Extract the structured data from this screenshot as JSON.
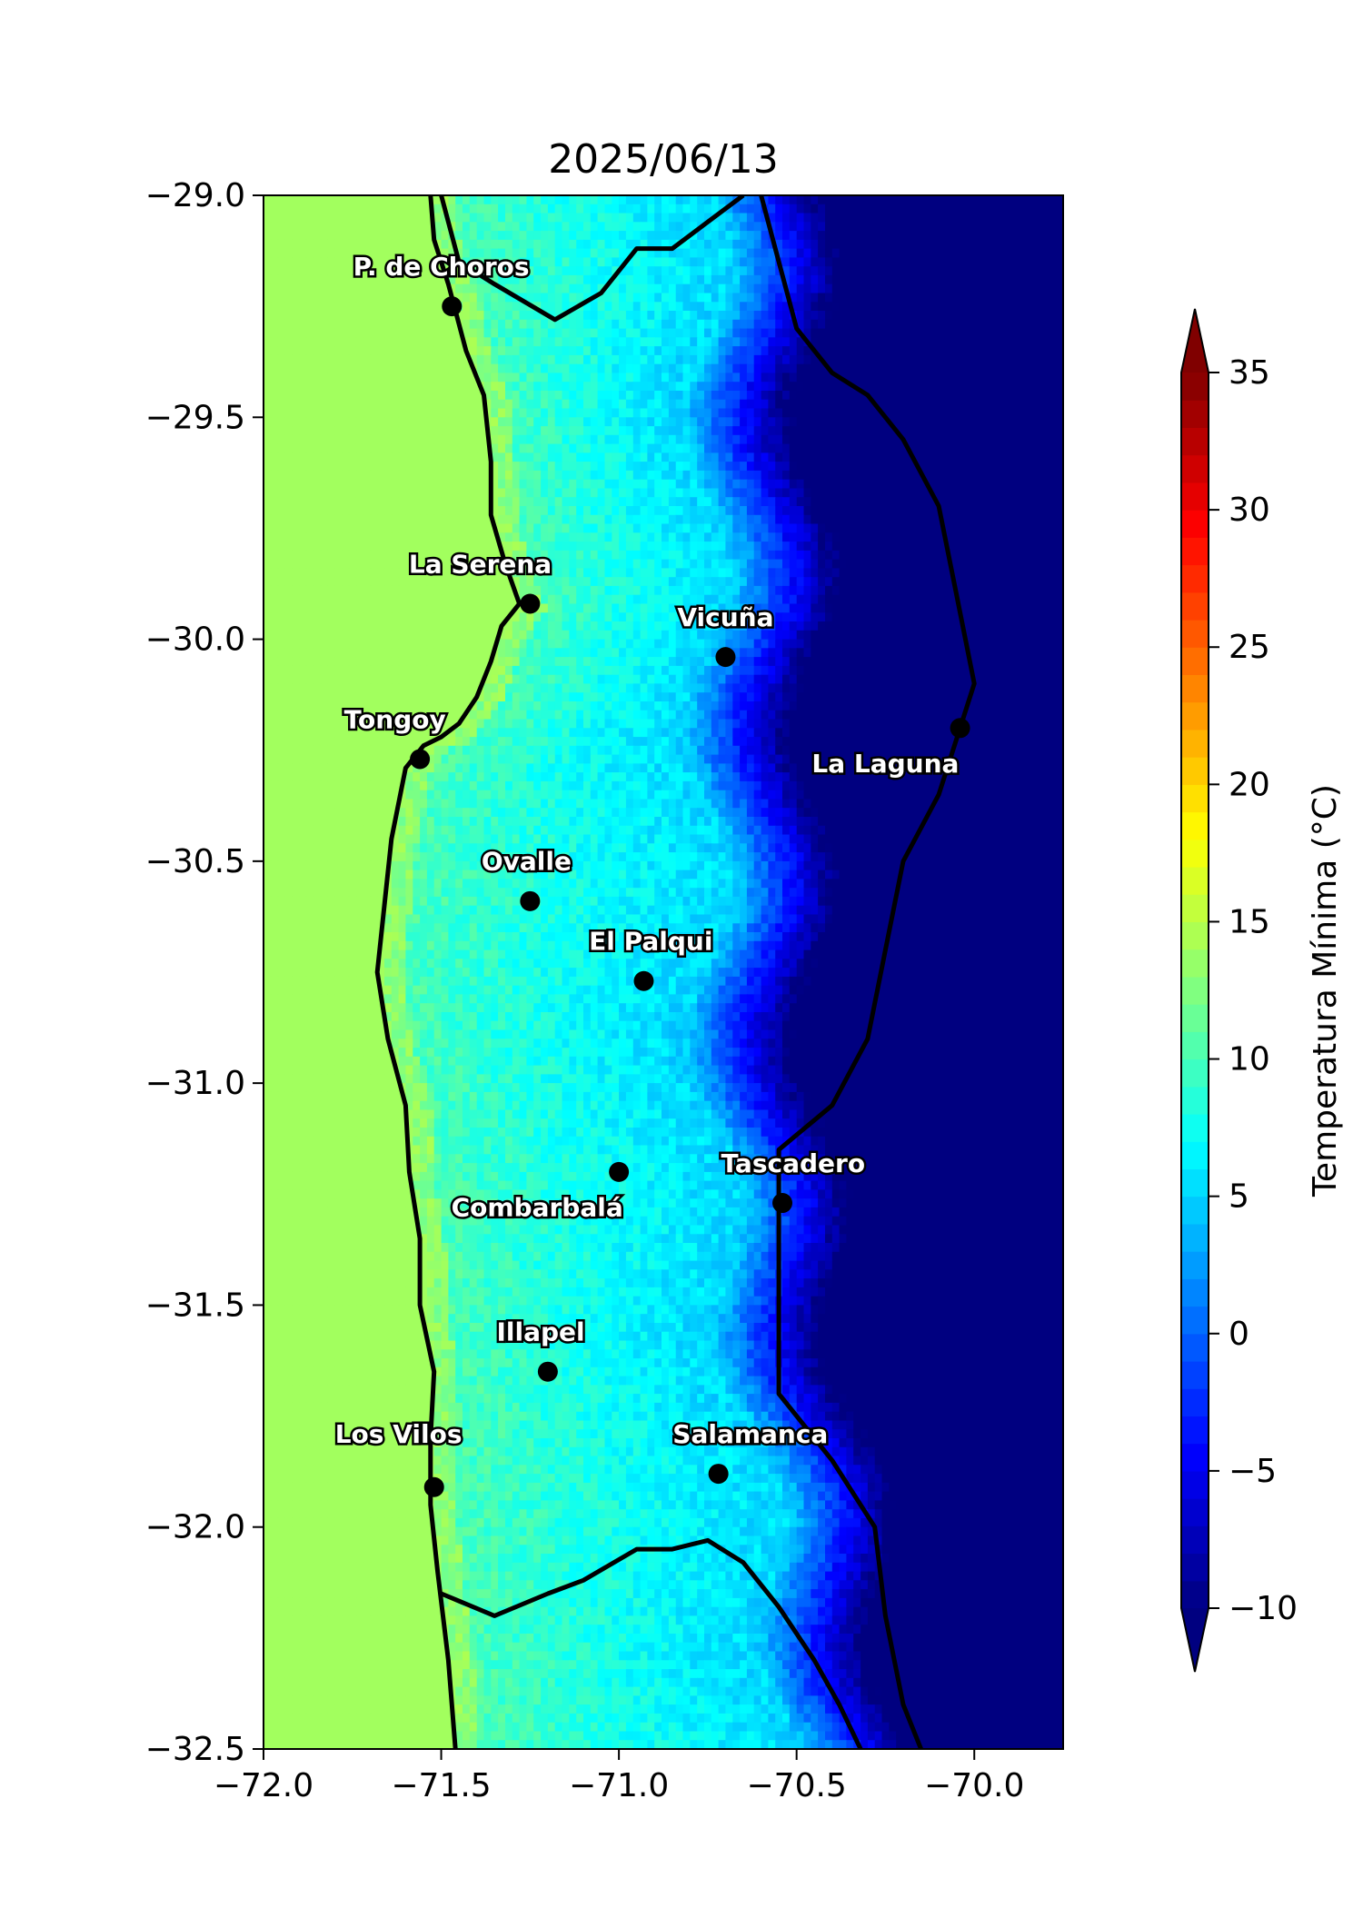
{
  "chart_data": {
    "type": "heatmap",
    "title": "2025/06/13",
    "xlabel": "",
    "ylabel": "",
    "xlim": [
      -72.0,
      -69.75
    ],
    "ylim": [
      -32.5,
      -29.0
    ],
    "x_ticks": [
      -72.0,
      -71.5,
      -71.0,
      -70.5,
      -70.0
    ],
    "x_tick_labels": [
      "−72.0",
      "−71.5",
      "−71.0",
      "−70.5",
      "−70.0"
    ],
    "y_ticks": [
      -29.0,
      -29.5,
      -30.0,
      -30.5,
      -31.0,
      -31.5,
      -32.0,
      -32.5
    ],
    "y_tick_labels": [
      "−29.0",
      "−29.5",
      "−30.0",
      "−30.5",
      "−31.0",
      "−31.5",
      "−32.0",
      "−32.5"
    ],
    "colorbar": {
      "label": "Temperatura Mínima (°C)",
      "min": -10,
      "max": 35,
      "ticks": [
        -10,
        -5,
        0,
        5,
        10,
        15,
        20,
        25,
        30,
        35
      ],
      "tick_labels": [
        "−10",
        "−5",
        "0",
        "5",
        "10",
        "15",
        "20",
        "25",
        "30",
        "35"
      ],
      "extend": "both",
      "colormap": "jet"
    },
    "ocean_value_c": 14,
    "stations": [
      {
        "name": "P. de Choros",
        "lon": -71.47,
        "lat": -29.25,
        "label_dx": -0.03,
        "label_dy": 0.07
      },
      {
        "name": "La Serena",
        "lon": -71.25,
        "lat": -29.92,
        "label_dx": -0.14,
        "label_dy": 0.07
      },
      {
        "name": "Vicuña",
        "lon": -70.7,
        "lat": -30.04,
        "label_dx": 0.0,
        "label_dy": 0.07
      },
      {
        "name": "La Laguna",
        "lon": -70.04,
        "lat": -30.2,
        "label_dx": -0.21,
        "label_dy": -0.1
      },
      {
        "name": "Tongoy",
        "lon": -71.56,
        "lat": -30.27,
        "label_dx": -0.07,
        "label_dy": 0.07
      },
      {
        "name": "Ovalle",
        "lon": -71.25,
        "lat": -30.59,
        "label_dx": -0.01,
        "label_dy": 0.07
      },
      {
        "name": "El Palqui",
        "lon": -70.93,
        "lat": -30.77,
        "label_dx": 0.02,
        "label_dy": 0.07
      },
      {
        "name": "Combarbalá",
        "lon": -71.0,
        "lat": -31.2,
        "label_dx": -0.23,
        "label_dy": -0.1
      },
      {
        "name": "Tascadero",
        "lon": -70.54,
        "lat": -31.27,
        "label_dx": 0.03,
        "label_dy": 0.07
      },
      {
        "name": "Illapel",
        "lon": -71.2,
        "lat": -31.65,
        "label_dx": -0.02,
        "label_dy": 0.07
      },
      {
        "name": "Los Vilos",
        "lon": -71.52,
        "lat": -31.91,
        "label_dx": -0.1,
        "label_dy": 0.1
      },
      {
        "name": "Salamanca",
        "lon": -70.72,
        "lat": -31.88,
        "label_dx": 0.09,
        "label_dy": 0.07
      }
    ],
    "coastline": [
      [
        -71.53,
        -29.0
      ],
      [
        -71.52,
        -29.1
      ],
      [
        -71.48,
        -29.2
      ],
      [
        -71.46,
        -29.26
      ],
      [
        -71.43,
        -29.35
      ],
      [
        -71.38,
        -29.45
      ],
      [
        -71.36,
        -29.6
      ],
      [
        -71.36,
        -29.72
      ],
      [
        -71.32,
        -29.83
      ],
      [
        -71.28,
        -29.92
      ],
      [
        -71.33,
        -29.97
      ],
      [
        -71.36,
        -30.05
      ],
      [
        -71.4,
        -30.13
      ],
      [
        -71.45,
        -30.19
      ],
      [
        -71.5,
        -30.22
      ],
      [
        -71.55,
        -30.24
      ],
      [
        -71.6,
        -30.29
      ],
      [
        -71.64,
        -30.45
      ],
      [
        -71.66,
        -30.6
      ],
      [
        -71.68,
        -30.75
      ],
      [
        -71.65,
        -30.9
      ],
      [
        -71.6,
        -31.05
      ],
      [
        -71.59,
        -31.2
      ],
      [
        -71.56,
        -31.35
      ],
      [
        -71.56,
        -31.5
      ],
      [
        -71.52,
        -31.65
      ],
      [
        -71.53,
        -31.8
      ],
      [
        -71.53,
        -31.95
      ],
      [
        -71.51,
        -32.1
      ],
      [
        -71.48,
        -32.3
      ],
      [
        -71.46,
        -32.5
      ]
    ],
    "regional_boundary_north": [
      [
        -71.5,
        -29.0
      ],
      [
        -71.45,
        -29.15
      ],
      [
        -71.35,
        -29.2
      ],
      [
        -71.18,
        -29.28
      ],
      [
        -71.05,
        -29.22
      ],
      [
        -70.95,
        -29.12
      ],
      [
        -70.85,
        -29.12
      ],
      [
        -70.75,
        -29.06
      ],
      [
        -70.65,
        -29.0
      ]
    ],
    "regional_boundary_south": [
      [
        -71.5,
        -32.15
      ],
      [
        -71.35,
        -32.2
      ],
      [
        -71.2,
        -32.15
      ],
      [
        -71.1,
        -32.12
      ],
      [
        -70.95,
        -32.05
      ],
      [
        -70.85,
        -32.05
      ],
      [
        -70.75,
        -32.03
      ],
      [
        -70.65,
        -32.08
      ],
      [
        -70.55,
        -32.18
      ],
      [
        -70.45,
        -32.3
      ],
      [
        -70.38,
        -32.4
      ],
      [
        -70.32,
        -32.5
      ]
    ],
    "international_border": [
      [
        -70.6,
        -29.0
      ],
      [
        -70.5,
        -29.3
      ],
      [
        -70.4,
        -29.4
      ],
      [
        -70.3,
        -29.45
      ],
      [
        -70.2,
        -29.55
      ],
      [
        -70.1,
        -29.7
      ],
      [
        -70.05,
        -29.9
      ],
      [
        -70.0,
        -30.1
      ],
      [
        -70.1,
        -30.35
      ],
      [
        -70.2,
        -30.5
      ],
      [
        -70.25,
        -30.7
      ],
      [
        -70.3,
        -30.9
      ],
      [
        -70.4,
        -31.05
      ],
      [
        -70.55,
        -31.15
      ],
      [
        -70.55,
        -31.4
      ],
      [
        -70.55,
        -31.7
      ],
      [
        -70.4,
        -31.85
      ],
      [
        -70.28,
        -32.0
      ],
      [
        -70.25,
        -32.2
      ],
      [
        -70.2,
        -32.4
      ],
      [
        -70.15,
        -32.5
      ]
    ]
  }
}
